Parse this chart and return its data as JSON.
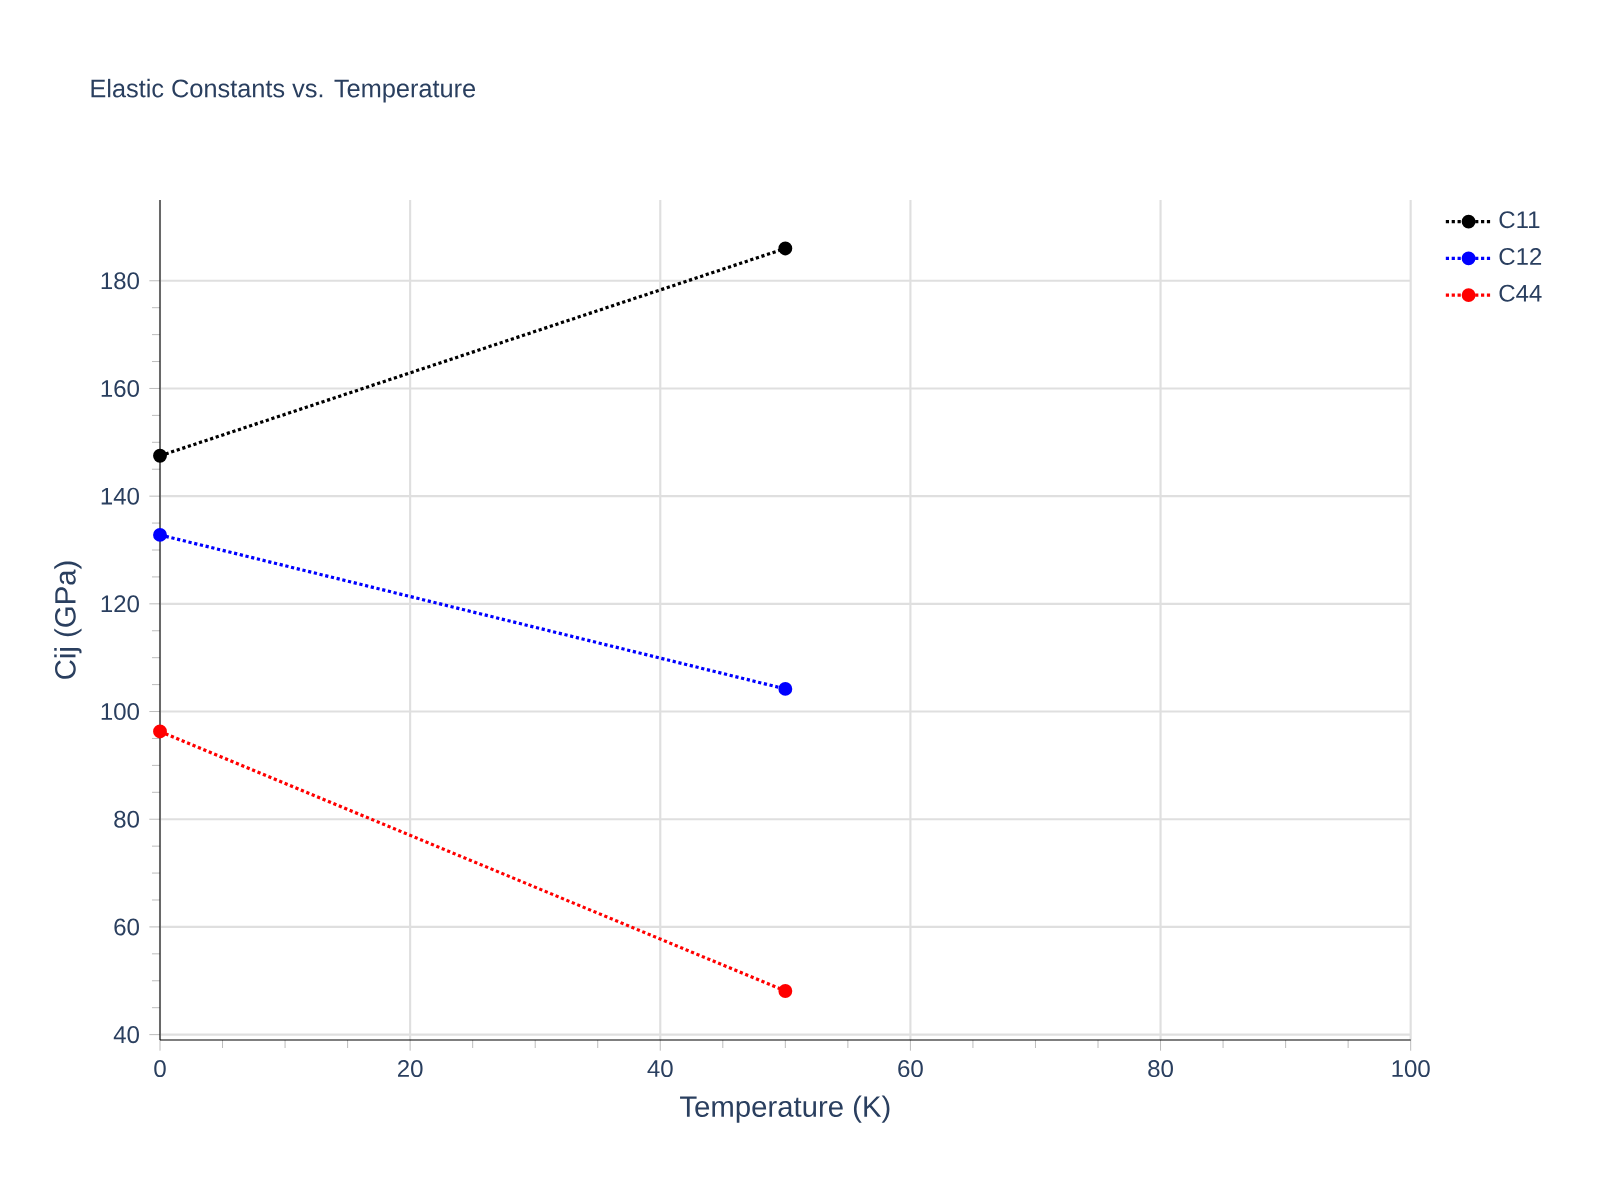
{
  "chart_data": {
    "type": "line",
    "title": "Elastic Constants vs. Temperature",
    "xlabel": "Temperature (K)",
    "ylabel": "Cij (GPa)",
    "x": [
      0,
      50
    ],
    "series": [
      {
        "name": "C11",
        "color": "#000000",
        "values": [
          147.5,
          186.0
        ]
      },
      {
        "name": "C12",
        "color": "#0000ff",
        "values": [
          132.8,
          104.2
        ]
      },
      {
        "name": "C44",
        "color": "#ff0000",
        "values": [
          96.3,
          48.1
        ]
      }
    ],
    "xlim": [
      0,
      100
    ],
    "xticks": [
      0,
      20,
      40,
      60,
      80,
      100
    ],
    "ylim": [
      39,
      195
    ],
    "yticks": [
      40,
      60,
      80,
      100,
      120,
      140,
      160,
      180
    ],
    "grid": true,
    "legend": "top right",
    "marker": "circle",
    "line_style": "dotted"
  }
}
